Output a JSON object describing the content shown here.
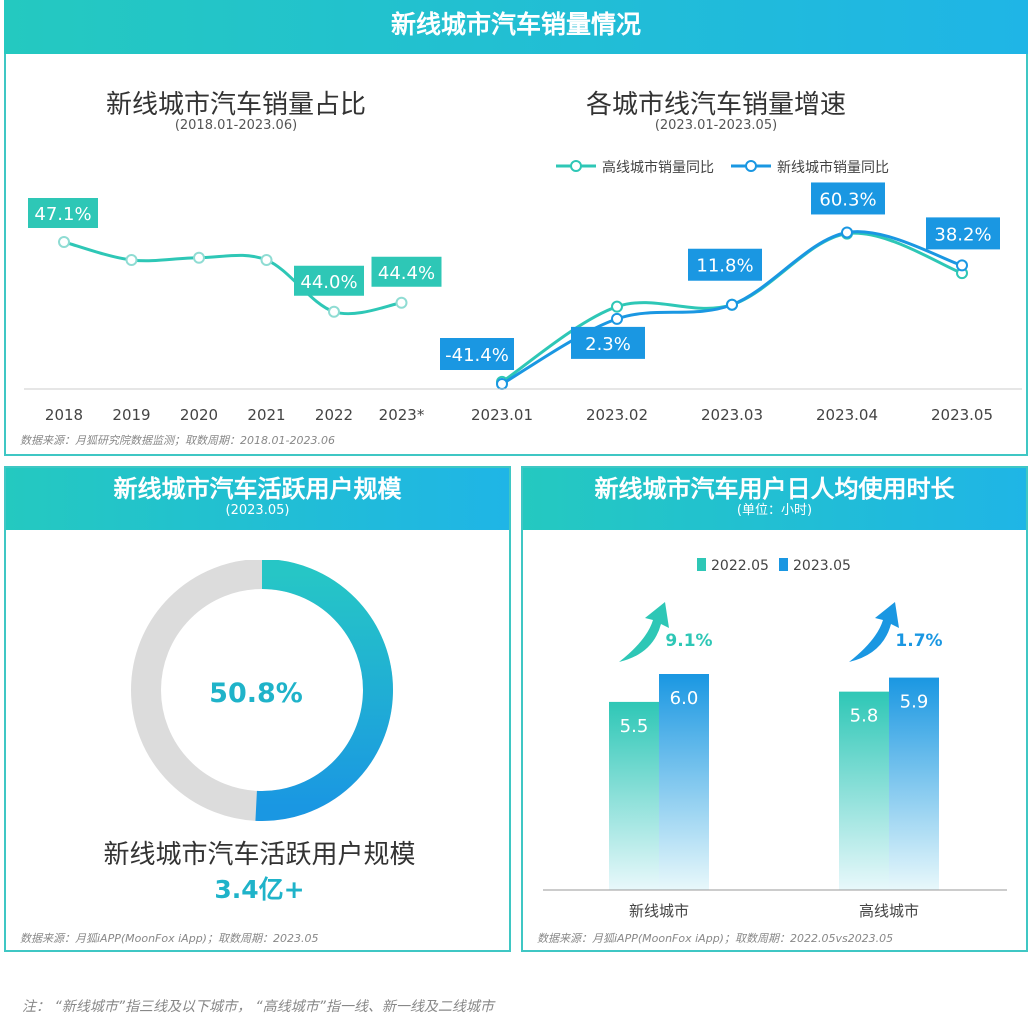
{
  "page_title": "新线城市汽车销量情况",
  "note": "注：  “新线城市”指三线及以下城市，  “高线城市”指一线、新一线及二线城市",
  "chart_data": [
    {
      "type": "line",
      "title": "新线城市汽车销量占比",
      "subtitle": "(2018.01-2023.06)",
      "categories": [
        "2018",
        "2019",
        "2020",
        "2021",
        "2022",
        "2023*"
      ],
      "series": [
        {
          "values": [
            47.1,
            46.3,
            46.4,
            46.3,
            44.0,
            44.4
          ]
        }
      ],
      "labels": [
        "47.1%",
        "",
        "",
        "",
        "44.0%",
        "44.4%"
      ],
      "color": "#2ec7b6",
      "source": "数据来源：月狐研究院数据监测；取数周期：2018.01-2023.06"
    },
    {
      "type": "line",
      "title": "各城市线汽车销量增速",
      "subtitle": "(2023.01-2023.05)",
      "categories": [
        "2023.01",
        "2023.02",
        "2023.03",
        "2023.04",
        "2023.05"
      ],
      "series": [
        {
          "name": "高线城市销量同比",
          "color": "#2ec7b6",
          "values": [
            -40.0,
            10.5,
            11.8,
            59.5,
            33.0
          ]
        },
        {
          "name": "新线城市销量同比",
          "color": "#1a97e2",
          "values": [
            -41.4,
            2.3,
            11.8,
            60.3,
            38.2
          ]
        }
      ],
      "labels": [
        "-41.4%",
        "2.3%",
        "11.8%",
        "60.3%",
        "38.2%"
      ],
      "ylim": [
        -45,
        65
      ]
    },
    {
      "type": "pie",
      "title": "新线城市汽车活跃用户规模",
      "subtitle": "(2023.05)",
      "values": [
        50.8,
        49.2
      ],
      "colors": [
        "#1fb3d6",
        "#dcdcdc"
      ],
      "center_label": "50.8%",
      "caption": "新线城市汽车活跃用户规模",
      "caption_value": "3.4亿+",
      "source": "数据来源：月狐iAPP(MoonFox iApp)；取数周期：2023.05"
    },
    {
      "type": "bar",
      "title": "新线城市汽车用户日人均使用时长",
      "subtitle": "(单位：小时)",
      "categories": [
        "新线城市",
        "高线城市"
      ],
      "series": [
        {
          "name": "2022.05",
          "color": "#2ec7b6",
          "values": [
            5.5,
            5.8
          ]
        },
        {
          "name": "2023.05",
          "color": "#1a97e2",
          "values": [
            6.0,
            5.9
          ]
        }
      ],
      "growth": [
        "9.1%",
        "1.7%"
      ],
      "ylim": [
        0,
        7.5
      ],
      "source": "数据来源：月狐iAPP(MoonFox iApp)；取数周期：2022.05vs2023.05"
    }
  ]
}
